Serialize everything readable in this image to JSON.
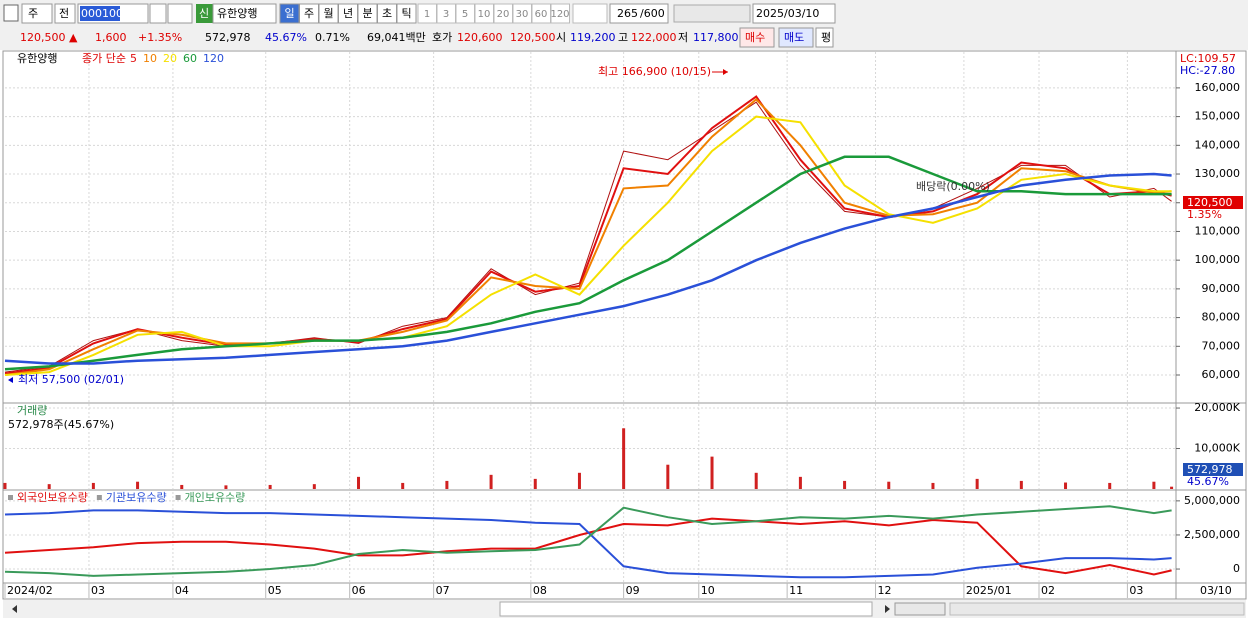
{
  "toolbar": {
    "type": "주",
    "prev": "전",
    "code": "000100",
    "badge": "신",
    "name": "유한양행",
    "periods": [
      "일",
      "주",
      "월",
      "년",
      "분",
      "초",
      "틱"
    ],
    "minutes": [
      "1",
      "3",
      "5",
      "10",
      "20",
      "30",
      "60",
      "120"
    ],
    "count": "265",
    "max": "/600",
    "date": "2025/03/10"
  },
  "info_bar": {
    "items": [
      {
        "text": "120,500 ▲",
        "color": "#d00"
      },
      {
        "text": "1,600",
        "color": "#d00"
      },
      {
        "text": "+1.35%",
        "color": "#d00"
      },
      {
        "text": "572,978",
        "color": "#000"
      },
      {
        "text": "45.67%",
        "color": "#00c"
      },
      {
        "text": "0.71%",
        "color": "#000"
      },
      {
        "text": "69,041백만",
        "color": "#000"
      },
      {
        "text": "호가",
        "color": "#000"
      },
      {
        "text": "120,600",
        "color": "#d00"
      },
      {
        "text": "120,500",
        "color": "#d00"
      },
      {
        "text": "시",
        "color": "#000"
      },
      {
        "text": "119,200",
        "color": "#00c"
      },
      {
        "text": "고",
        "color": "#000"
      },
      {
        "text": "122,000",
        "color": "#d00"
      },
      {
        "text": "저",
        "color": "#000"
      },
      {
        "text": "117,800",
        "color": "#00c"
      },
      {
        "text": "매수",
        "color": "#d00"
      },
      {
        "text": "매도",
        "color": "#00c"
      },
      {
        "text": "평",
        "color": "#000"
      }
    ]
  },
  "chart_data": [
    {
      "type": "line",
      "stock_label": "유한양행",
      "legend_prefix": "종가 단순",
      "lc_label": "LC:109.57",
      "hc_label": "HC:-27.80",
      "annotations": [
        "최고 166,900 (10/15)",
        "최저 57,500 (02/01)",
        "배당락(0.00%)"
      ],
      "last_price": {
        "value": 120500,
        "label": "120,500"
      },
      "change_label": "1.35%",
      "x": [
        0,
        10,
        20,
        30,
        40,
        50,
        60,
        70,
        80,
        90,
        100,
        110,
        120,
        130,
        140,
        150,
        160,
        170,
        180,
        190,
        200,
        210,
        220,
        230,
        240,
        250,
        260,
        264
      ],
      "xlim": [
        0,
        265
      ],
      "ylim": [
        50600,
        172500
      ],
      "yticks": [
        {
          "value": 60000,
          "label": "60,000"
        },
        {
          "value": 70000,
          "label": "70,000"
        },
        {
          "value": 80000,
          "label": "80,000"
        },
        {
          "value": 90000,
          "label": "90,000"
        },
        {
          "value": 100000,
          "label": "100,000"
        },
        {
          "value": 110000,
          "label": "110,000"
        },
        {
          "value": 120000,
          "label": "120,000"
        },
        {
          "value": 130000,
          "label": "130,000"
        },
        {
          "value": 140000,
          "label": "140,000"
        },
        {
          "value": 150000,
          "label": "150,000"
        },
        {
          "value": 160000,
          "label": "160,000"
        }
      ],
      "grid": true,
      "close": {
        "color": "#b01010",
        "values": [
          61000,
          63000,
          72000,
          76000,
          72000,
          70000,
          71000,
          73000,
          71000,
          77000,
          80000,
          97000,
          88000,
          92000,
          138000,
          135000,
          145000,
          155000,
          133000,
          117000,
          115000,
          118000,
          125000,
          133000,
          133000,
          122000,
          125000,
          120500
        ]
      },
      "series": [
        {
          "name": "5",
          "color": "#e01010",
          "values": [
            60500,
            62500,
            71000,
            76000,
            73000,
            70500,
            71000,
            72500,
            71500,
            76000,
            79500,
            96000,
            89000,
            91000,
            132000,
            130000,
            146000,
            157000,
            135000,
            118000,
            115000,
            117000,
            123000,
            134000,
            132000,
            123000,
            124000,
            122500
          ]
        },
        {
          "name": "10",
          "color": "#f08000",
          "values": [
            60000,
            62000,
            69000,
            75500,
            74000,
            71000,
            71000,
            72000,
            72000,
            75000,
            79000,
            94000,
            91000,
            90000,
            125000,
            126000,
            143000,
            156000,
            140000,
            120000,
            115500,
            116000,
            120000,
            132000,
            131000,
            126000,
            123500,
            124000
          ]
        },
        {
          "name": "20",
          "color": "#f5e000",
          "values": [
            60000,
            61000,
            67000,
            74000,
            75000,
            70000,
            70000,
            72000,
            72000,
            73000,
            77000,
            88000,
            95000,
            88000,
            105000,
            120000,
            138000,
            150000,
            148000,
            126000,
            116000,
            113000,
            118000,
            128000,
            130000,
            126000,
            124000,
            124000
          ]
        },
        {
          "name": "60",
          "color": "#1a9a3a",
          "values": [
            62000,
            63000,
            65000,
            67000,
            69000,
            70000,
            71000,
            72000,
            72000,
            73000,
            75000,
            78000,
            82000,
            85000,
            93000,
            100000,
            110000,
            120000,
            130000,
            136000,
            136000,
            130000,
            124000,
            124000,
            123000,
            123000,
            123000,
            123000
          ]
        },
        {
          "name": "120",
          "color": "#2a50d8",
          "values": [
            65000,
            64000,
            64000,
            65000,
            65500,
            66000,
            67000,
            68000,
            69000,
            70000,
            72000,
            75000,
            78000,
            81000,
            84000,
            88000,
            93000,
            100000,
            106000,
            111000,
            115000,
            118000,
            122000,
            126000,
            128000,
            129500,
            130000,
            129500
          ]
        }
      ]
    },
    {
      "type": "bar",
      "title": "거래량",
      "subtitle": "572,978주(45.67%)",
      "last_label": "572,978",
      "ratio_label": "45.67%",
      "x": [
        0,
        10,
        20,
        30,
        40,
        50,
        60,
        70,
        80,
        90,
        100,
        110,
        120,
        130,
        140,
        150,
        160,
        170,
        180,
        190,
        200,
        210,
        220,
        230,
        240,
        250,
        260,
        264
      ],
      "xlim": [
        0,
        265
      ],
      "ylim": [
        0,
        21000
      ],
      "yticks": [
        {
          "value": 10000,
          "label": "10,000K"
        },
        {
          "value": 20000,
          "label": "20,000K"
        }
      ],
      "color": "#d02020",
      "values": [
        1500,
        1200,
        1500,
        1800,
        1000,
        900,
        1000,
        1200,
        3000,
        1500,
        2000,
        3500,
        2500,
        4000,
        15000,
        6000,
        8000,
        4000,
        3000,
        2000,
        1800,
        1500,
        2500,
        2000,
        1600,
        1500,
        1800,
        573
      ]
    },
    {
      "type": "line",
      "x": [
        0,
        10,
        20,
        30,
        40,
        50,
        60,
        70,
        80,
        90,
        100,
        110,
        120,
        130,
        140,
        150,
        160,
        170,
        180,
        190,
        200,
        210,
        220,
        230,
        240,
        250,
        260,
        264
      ],
      "xlim": [
        0,
        265
      ],
      "ylim": [
        -950000,
        5650000
      ],
      "yticks": [
        0,
        {
          "value": 2500000,
          "label": "2,500,000"
        },
        {
          "value": 5000000,
          "label": "5,000,000"
        }
      ],
      "xticks": [
        {
          "value": 0,
          "label": "2024/02"
        },
        {
          "value": 19,
          "label": "03"
        },
        {
          "value": 38,
          "label": "04"
        },
        {
          "value": 59,
          "label": "05"
        },
        {
          "value": 78,
          "label": "06"
        },
        {
          "value": 97,
          "label": "07"
        },
        {
          "value": 119,
          "label": "08"
        },
        {
          "value": 140,
          "label": "09"
        },
        {
          "value": 157,
          "label": "10"
        },
        {
          "value": 177,
          "label": "11"
        },
        {
          "value": 197,
          "label": "12"
        },
        {
          "value": 217,
          "label": "2025/01"
        },
        {
          "value": 234,
          "label": "02"
        },
        {
          "value": 254,
          "label": "03"
        }
      ],
      "last_date": "03/10",
      "series": [
        {
          "name": "외국인보유수량",
          "color": "#e01010",
          "values": [
            1200000,
            1400000,
            1600000,
            1900000,
            2000000,
            2000000,
            1800000,
            1500000,
            1000000,
            1000000,
            1300000,
            1500000,
            1500000,
            2500000,
            3300000,
            3200000,
            3700000,
            3500000,
            3300000,
            3500000,
            3200000,
            3600000,
            3400000,
            200000,
            -300000,
            300000,
            -400000,
            -100000
          ]
        },
        {
          "name": "기관보유수량",
          "color": "#2a50d8",
          "values": [
            4000000,
            4100000,
            4300000,
            4300000,
            4200000,
            4100000,
            4100000,
            4000000,
            3900000,
            3800000,
            3700000,
            3600000,
            3400000,
            3300000,
            200000,
            -300000,
            -400000,
            -500000,
            -600000,
            -600000,
            -500000,
            -400000,
            100000,
            400000,
            800000,
            800000,
            700000,
            800000
          ]
        },
        {
          "name": "개인보유수량",
          "color": "#3a9a5a",
          "values": [
            -200000,
            -300000,
            -500000,
            -400000,
            -300000,
            -200000,
            0,
            300000,
            1100000,
            1400000,
            1200000,
            1300000,
            1400000,
            1800000,
            4500000,
            3800000,
            3300000,
            3500000,
            3800000,
            3700000,
            3900000,
            3700000,
            4000000,
            4200000,
            4400000,
            4600000,
            4100000,
            4300000
          ]
        }
      ]
    }
  ]
}
